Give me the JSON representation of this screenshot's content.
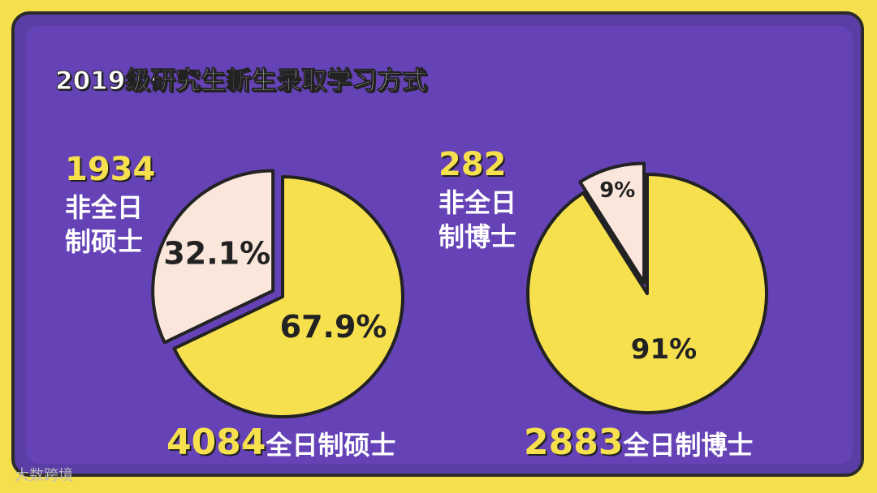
{
  "title": "2019级研究生新生录取学习方式",
  "watermark": "大数跨境",
  "chart_data": [
    {
      "type": "pie",
      "categories": [
        "非全日制硕士",
        "全日制硕士"
      ],
      "counts": [
        1934,
        4084
      ],
      "values": [
        32.1,
        67.9
      ],
      "value_labels": [
        "32.1%",
        "67.9%"
      ],
      "colors": [
        "#fbe6dc",
        "#f7e04e"
      ]
    },
    {
      "type": "pie",
      "categories": [
        "非全日制博士",
        "全日制博士"
      ],
      "counts": [
        282,
        2883
      ],
      "values": [
        9,
        91
      ],
      "value_labels": [
        "9%",
        "91%"
      ],
      "colors": [
        "#fbe6dc",
        "#f7e04e"
      ]
    }
  ]
}
